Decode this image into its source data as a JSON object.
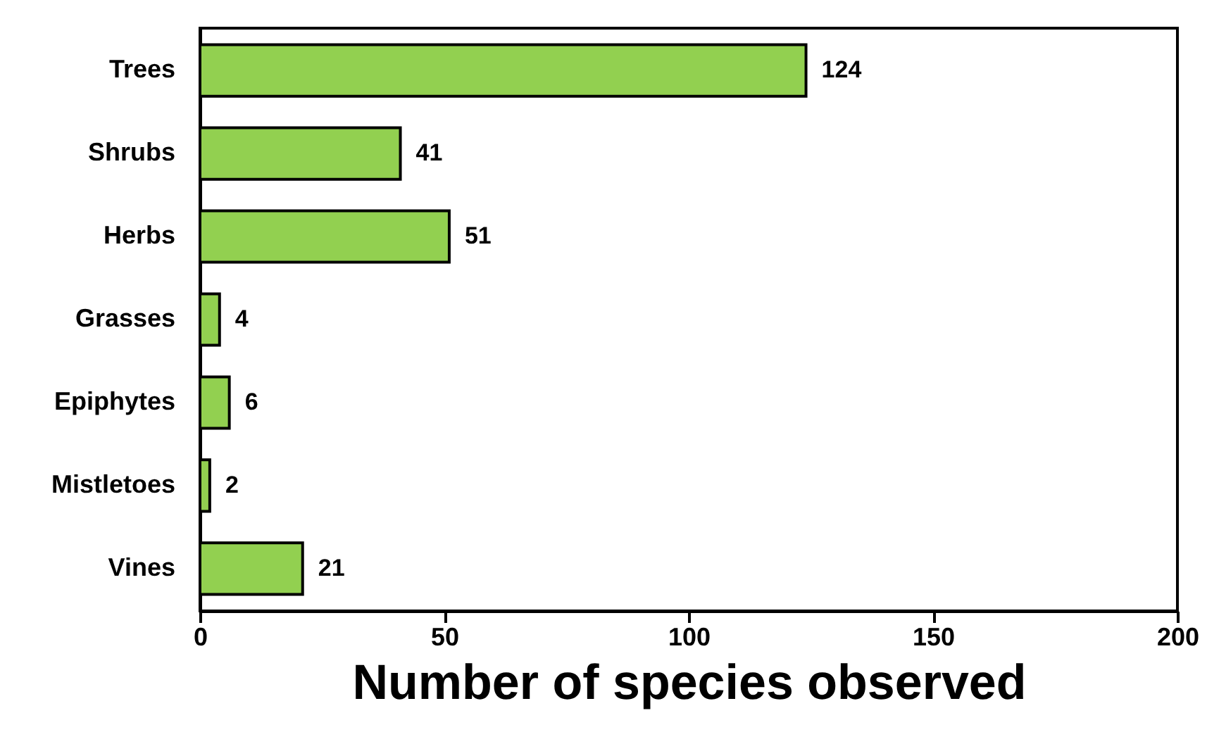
{
  "chart_data": {
    "type": "bar",
    "orientation": "horizontal",
    "xlabel": "Number of species observed",
    "categories": [
      "Trees",
      "Shrubs",
      "Herbs",
      "Grasses",
      "Epiphytes",
      "Mistletoes",
      "Vines"
    ],
    "values": [
      124,
      41,
      51,
      4,
      6,
      2,
      21
    ],
    "color": "#92d050",
    "xlim": [
      0,
      200
    ],
    "xticks": [
      0,
      50,
      100,
      150,
      200
    ],
    "data_labels": true,
    "grid": false
  }
}
